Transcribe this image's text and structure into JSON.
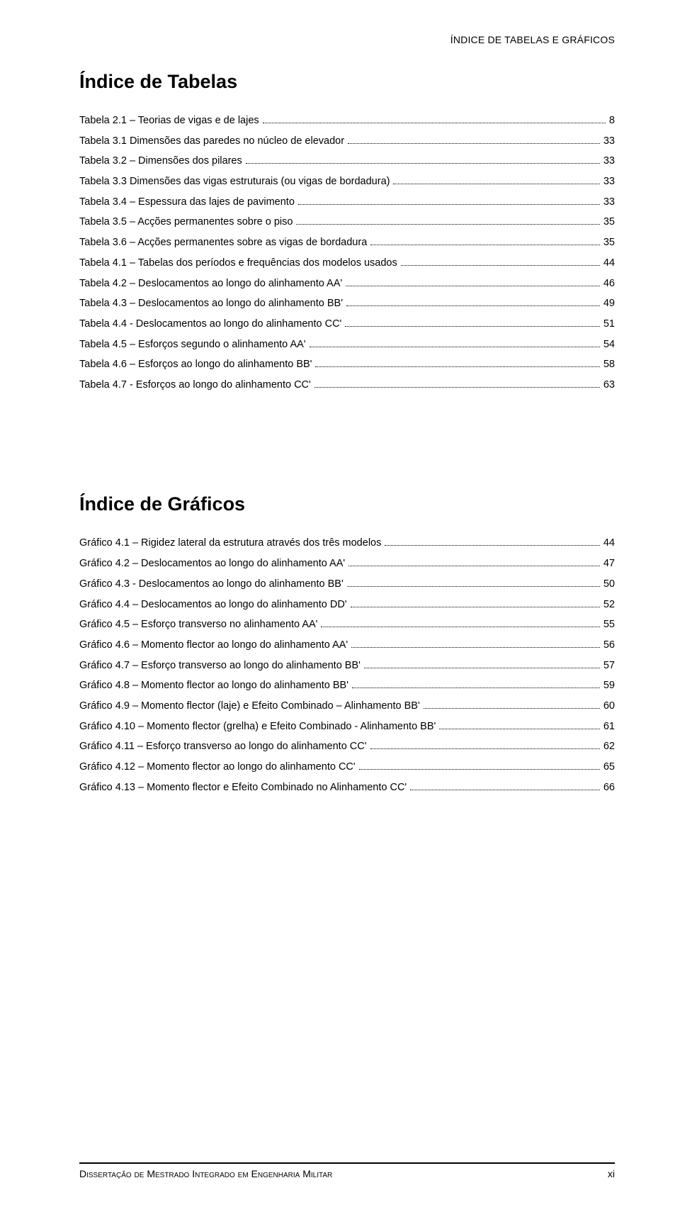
{
  "header": "ÍNDICE DE TABELAS E GRÁFICOS",
  "sections": [
    {
      "title": "Índice de Tabelas",
      "entries": [
        {
          "label": "Tabela 2.1 – Teorias de vigas e de lajes",
          "page": "8"
        },
        {
          "label": "Tabela 3.1 Dimensões das paredes no núcleo de elevador",
          "page": "33"
        },
        {
          "label": "Tabela 3.2 – Dimensões dos pilares",
          "page": "33"
        },
        {
          "label": "Tabela 3.3 Dimensões das vigas estruturais (ou vigas de bordadura)",
          "page": "33"
        },
        {
          "label": "Tabela 3.4 – Espessura das lajes de pavimento",
          "page": "33"
        },
        {
          "label": "Tabela 3.5 – Acções permanentes sobre o piso",
          "page": "35"
        },
        {
          "label": "Tabela 3.6 – Acções permanentes sobre as vigas de bordadura",
          "page": "35"
        },
        {
          "label": "Tabela 4.1 – Tabelas dos períodos e frequências dos modelos usados",
          "page": "44"
        },
        {
          "label": "Tabela 4.2 – Deslocamentos ao longo do alinhamento AA'",
          "page": "46"
        },
        {
          "label": "Tabela 4.3 – Deslocamentos ao longo do alinhamento BB'",
          "page": "49"
        },
        {
          "label": "Tabela 4.4 - Deslocamentos ao longo do alinhamento CC'",
          "page": "51"
        },
        {
          "label": "Tabela 4.5 – Esforços segundo o alinhamento AA'",
          "page": "54"
        },
        {
          "label": "Tabela 4.6 – Esforços ao longo do alinhamento BB'",
          "page": "58"
        },
        {
          "label": "Tabela 4.7 - Esforços ao longo do alinhamento CC'",
          "page": "63"
        }
      ]
    },
    {
      "title": "Índice de Gráficos",
      "entries": [
        {
          "label": "Gráfico 4.1 – Rigidez lateral da estrutura através dos três modelos",
          "page": "44"
        },
        {
          "label": "Gráfico 4.2 – Deslocamentos ao longo do alinhamento AA'",
          "page": "47"
        },
        {
          "label": "Gráfico 4.3 - Deslocamentos ao longo do alinhamento BB'",
          "page": "50"
        },
        {
          "label": "Gráfico 4.4 – Deslocamentos ao longo do alinhamento DD'",
          "page": "52"
        },
        {
          "label": "Gráfico 4.5 – Esforço transverso no alinhamento AA'",
          "page": "55"
        },
        {
          "label": "Gráfico 4.6 – Momento flector ao longo do alinhamento AA'",
          "page": "56"
        },
        {
          "label": "Gráfico 4.7 – Esforço transverso ao longo do alinhamento BB'",
          "page": "57"
        },
        {
          "label": "Gráfico 4.8 – Momento flector ao longo do alinhamento BB'",
          "page": "59"
        },
        {
          "label": "Gráfico 4.9 – Momento flector (laje) e Efeito Combinado – Alinhamento BB'",
          "page": "60"
        },
        {
          "label": "Gráfico 4.10 – Momento flector (grelha) e Efeito Combinado - Alinhamento BB'",
          "page": "61"
        },
        {
          "label": "Gráfico 4.11 – Esforço transverso ao longo do alinhamento CC'",
          "page": "62"
        },
        {
          "label": "Gráfico 4.12 – Momento flector ao longo do alinhamento CC'",
          "page": "65"
        },
        {
          "label": "Gráfico 4.13 – Momento flector e Efeito Combinado no Alinhamento CC'",
          "page": "66"
        }
      ]
    }
  ],
  "footer": {
    "left": "Dissertação de Mestrado Integrado em Engenharia Militar",
    "right": "xi"
  }
}
